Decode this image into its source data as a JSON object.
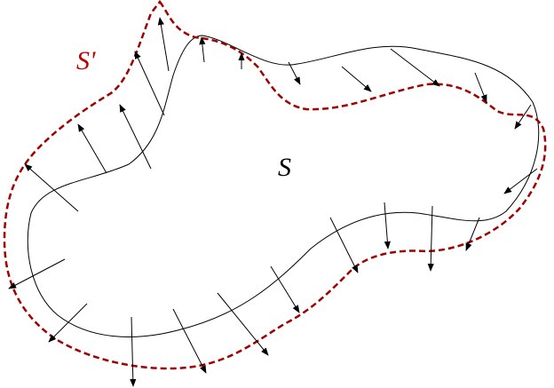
{
  "labels": {
    "surface": "S",
    "surface_prime": "S'"
  }
}
